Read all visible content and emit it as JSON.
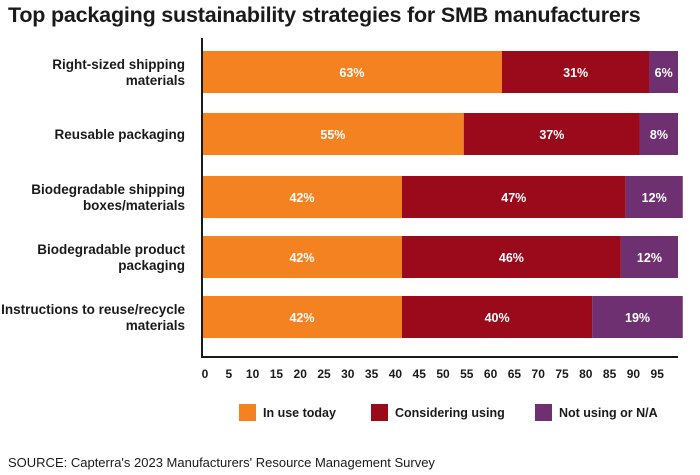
{
  "chart_data": {
    "type": "bar",
    "orientation": "horizontal",
    "stacked": true,
    "title": "Top packaging sustainability strategies for SMB manufacturers",
    "categories": [
      [
        "Right-sized shipping",
        "materials"
      ],
      [
        "Reusable packaging"
      ],
      [
        "Biodegradable shipping",
        "boxes/materials"
      ],
      [
        "Biodegradable product",
        "packaging"
      ],
      [
        "Instructions to reuse/recycle",
        "materials"
      ]
    ],
    "series": [
      {
        "name": "In use today",
        "color": "#F58220",
        "values": [
          63,
          55,
          42,
          42,
          42
        ]
      },
      {
        "name": "Considering using",
        "color": "#9B0A1A",
        "values": [
          31,
          37,
          47,
          46,
          40
        ]
      },
      {
        "name": "Not using or N/A",
        "color": "#6E3070",
        "values": [
          6,
          8,
          12,
          12,
          19
        ]
      }
    ],
    "value_labels": [
      [
        "63%",
        "31%",
        "6%"
      ],
      [
        "55%",
        "37%",
        "8%"
      ],
      [
        "42%",
        "47%",
        "12%"
      ],
      [
        "42%",
        "46%",
        "12%"
      ],
      [
        "42%",
        "40%",
        "19%"
      ]
    ],
    "xticks": [
      "0",
      "5",
      "10",
      "15",
      "20",
      "25",
      "30",
      "35",
      "40",
      "45",
      "50",
      "55",
      "60",
      "65",
      "70",
      "75",
      "80",
      "85",
      "90",
      "95"
    ],
    "xlim": [
      0,
      100
    ],
    "grid": false,
    "legend_position": "bottom"
  },
  "source": "SOURCE: Capterra's 2023 Manufacturers' Resource Management Survey"
}
